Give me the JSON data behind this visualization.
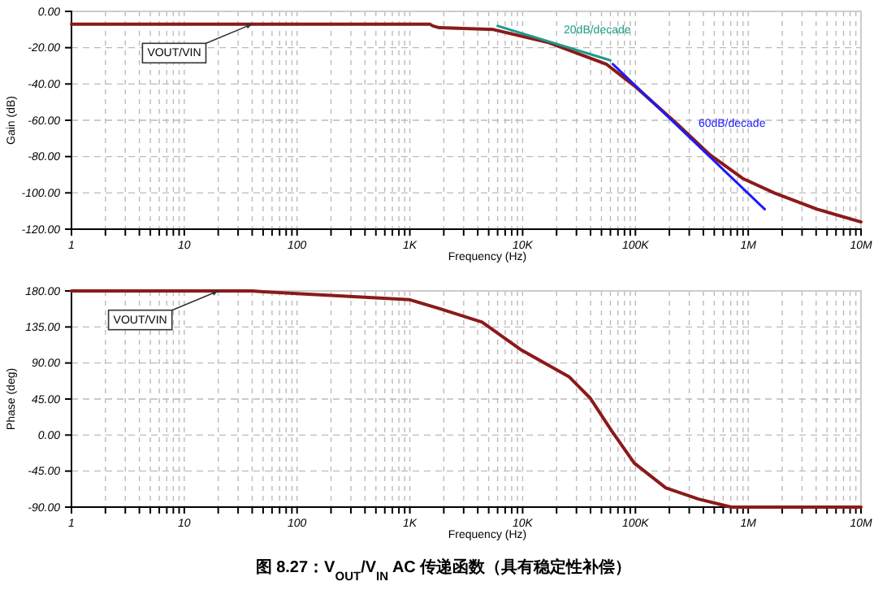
{
  "chart_data": [
    {
      "type": "line",
      "xlabel": "Frequency (Hz)",
      "ylabel": "Gain (dB)",
      "log": "x",
      "grid": true,
      "xlim": [
        1,
        10000000
      ],
      "ylim": [
        -120,
        0
      ],
      "xticks": [
        1,
        {
          "value": 2,
          "label": null
        },
        {
          "value": 3,
          "label": null
        },
        {
          "value": 4,
          "label": null
        },
        {
          "value": 5,
          "label": null
        },
        {
          "value": 6,
          "label": null
        },
        {
          "value": 7,
          "label": null
        },
        {
          "value": 8,
          "label": null
        },
        {
          "value": 9,
          "label": null
        },
        10,
        {
          "value": 20,
          "label": null
        },
        {
          "value": 30,
          "label": null
        },
        {
          "value": 40,
          "label": null
        },
        {
          "value": 50,
          "label": null
        },
        {
          "value": 60,
          "label": null
        },
        {
          "value": 70,
          "label": null
        },
        {
          "value": 80,
          "label": null
        },
        {
          "value": 90,
          "label": null
        },
        100,
        {
          "value": 200,
          "label": null
        },
        {
          "value": 300,
          "label": null
        },
        {
          "value": 400,
          "label": null
        },
        {
          "value": 500,
          "label": null
        },
        {
          "value": 600,
          "label": null
        },
        {
          "value": 700,
          "label": null
        },
        {
          "value": 800,
          "label": null
        },
        {
          "value": 900,
          "label": null
        },
        {
          "value": 1000,
          "label": "1K"
        },
        {
          "value": 2000,
          "label": null
        },
        {
          "value": 3000,
          "label": null
        },
        {
          "value": 4000,
          "label": null
        },
        {
          "value": 5000,
          "label": null
        },
        {
          "value": 6000,
          "label": null
        },
        {
          "value": 7000,
          "label": null
        },
        {
          "value": 8000,
          "label": null
        },
        {
          "value": 9000,
          "label": null
        },
        {
          "value": 10000,
          "label": "10K"
        },
        {
          "value": 20000,
          "label": null
        },
        {
          "value": 30000,
          "label": null
        },
        {
          "value": 40000,
          "label": null
        },
        {
          "value": 50000,
          "label": null
        },
        {
          "value": 60000,
          "label": null
        },
        {
          "value": 70000,
          "label": null
        },
        {
          "value": 80000,
          "label": null
        },
        {
          "value": 90000,
          "label": null
        },
        {
          "value": 100000,
          "label": "100K"
        },
        {
          "value": 200000,
          "label": null
        },
        {
          "value": 300000,
          "label": null
        },
        {
          "value": 400000,
          "label": null
        },
        {
          "value": 500000,
          "label": null
        },
        {
          "value": 600000,
          "label": null
        },
        {
          "value": 700000,
          "label": null
        },
        {
          "value": 800000,
          "label": null
        },
        {
          "value": 900000,
          "label": null
        },
        {
          "value": 1000000,
          "label": "1M"
        },
        {
          "value": 2000000,
          "label": null
        },
        {
          "value": 3000000,
          "label": null
        },
        {
          "value": 4000000,
          "label": null
        },
        {
          "value": 5000000,
          "label": null
        },
        {
          "value": 6000000,
          "label": null
        },
        {
          "value": 7000000,
          "label": null
        },
        {
          "value": 8000000,
          "label": null
        },
        {
          "value": 9000000,
          "label": null
        },
        {
          "value": 10000000,
          "label": "10M"
        }
      ],
      "yticks": [
        {
          "value": 0,
          "label": "0.00"
        },
        {
          "value": -20,
          "label": "-20.00"
        },
        {
          "value": -40,
          "label": "-40.00"
        },
        {
          "value": -60,
          "label": "-60.00"
        },
        {
          "value": -80,
          "label": "-80.00"
        },
        {
          "value": -100,
          "label": "-100.00"
        },
        {
          "value": -120,
          "label": "-120.00"
        }
      ],
      "series": [
        {
          "color": "#8b1a1a",
          "x": [
            1,
            1500,
            1600,
            1820,
            5500,
            16600,
            55000,
            98000,
            234000,
            457000,
            891000,
            1700000,
            4070000,
            10000000
          ],
          "values": [
            -7,
            -7,
            -8,
            -9,
            -10,
            -17,
            -29,
            -41,
            -62,
            -79,
            -92,
            -100,
            -109,
            -116
          ]
        },
        {
          "name": "20dB/decade",
          "color": "#1a9a8a",
          "x": [
            6000,
            60000
          ],
          "values": [
            -8,
            -27
          ]
        },
        {
          "name": "60dB/decade",
          "color": "#1a1aff",
          "x": [
            63000,
            1400000
          ],
          "values": [
            -29,
            -109
          ]
        }
      ],
      "annotations": [
        {
          "text": "VOUT/VIN",
          "x": 40,
          "y": -7
        }
      ]
    },
    {
      "type": "line",
      "xlabel": "Frequency (Hz)",
      "ylabel": "Phase (deg)",
      "log": "x",
      "grid": true,
      "xlim": [
        1,
        10000000
      ],
      "ylim": [
        -90,
        180
      ],
      "xticks": [
        1,
        {
          "value": 2,
          "label": null
        },
        {
          "value": 3,
          "label": null
        },
        {
          "value": 4,
          "label": null
        },
        {
          "value": 5,
          "label": null
        },
        {
          "value": 6,
          "label": null
        },
        {
          "value": 7,
          "label": null
        },
        {
          "value": 8,
          "label": null
        },
        {
          "value": 9,
          "label": null
        },
        10,
        {
          "value": 20,
          "label": null
        },
        {
          "value": 30,
          "label": null
        },
        {
          "value": 40,
          "label": null
        },
        {
          "value": 50,
          "label": null
        },
        {
          "value": 60,
          "label": null
        },
        {
          "value": 70,
          "label": null
        },
        {
          "value": 80,
          "label": null
        },
        {
          "value": 90,
          "label": null
        },
        100,
        {
          "value": 200,
          "label": null
        },
        {
          "value": 300,
          "label": null
        },
        {
          "value": 400,
          "label": null
        },
        {
          "value": 500,
          "label": null
        },
        {
          "value": 600,
          "label": null
        },
        {
          "value": 700,
          "label": null
        },
        {
          "value": 800,
          "label": null
        },
        {
          "value": 900,
          "label": null
        },
        {
          "value": 1000,
          "label": "1K"
        },
        {
          "value": 2000,
          "label": null
        },
        {
          "value": 3000,
          "label": null
        },
        {
          "value": 4000,
          "label": null
        },
        {
          "value": 5000,
          "label": null
        },
        {
          "value": 6000,
          "label": null
        },
        {
          "value": 7000,
          "label": null
        },
        {
          "value": 8000,
          "label": null
        },
        {
          "value": 9000,
          "label": null
        },
        {
          "value": 10000,
          "label": "10K"
        },
        {
          "value": 20000,
          "label": null
        },
        {
          "value": 30000,
          "label": null
        },
        {
          "value": 40000,
          "label": null
        },
        {
          "value": 50000,
          "label": null
        },
        {
          "value": 60000,
          "label": null
        },
        {
          "value": 70000,
          "label": null
        },
        {
          "value": 80000,
          "label": null
        },
        {
          "value": 90000,
          "label": null
        },
        {
          "value": 100000,
          "label": "100K"
        },
        {
          "value": 200000,
          "label": null
        },
        {
          "value": 300000,
          "label": null
        },
        {
          "value": 400000,
          "label": null
        },
        {
          "value": 500000,
          "label": null
        },
        {
          "value": 600000,
          "label": null
        },
        {
          "value": 700000,
          "label": null
        },
        {
          "value": 800000,
          "label": null
        },
        {
          "value": 900000,
          "label": null
        },
        {
          "value": 1000000,
          "label": "1M"
        },
        {
          "value": 2000000,
          "label": null
        },
        {
          "value": 3000000,
          "label": null
        },
        {
          "value": 4000000,
          "label": null
        },
        {
          "value": 5000000,
          "label": null
        },
        {
          "value": 6000000,
          "label": null
        },
        {
          "value": 7000000,
          "label": null
        },
        {
          "value": 8000000,
          "label": null
        },
        {
          "value": 9000000,
          "label": null
        },
        {
          "value": 10000000,
          "label": "10M"
        }
      ],
      "yticks": [
        {
          "value": 180,
          "label": "180.00"
        },
        {
          "value": 135,
          "label": "135.00"
        },
        {
          "value": 90,
          "label": "90.00"
        },
        {
          "value": 45,
          "label": "45.00"
        },
        {
          "value": 0,
          "label": "0.00"
        },
        {
          "value": -45,
          "label": "-45.00"
        },
        {
          "value": -90,
          "label": "-90.00"
        }
      ],
      "series": [
        {
          "color": "#8b1a1a",
          "x": [
            1,
            40,
            50,
            1000,
            1820,
            4370,
            9550,
            25700,
            39800,
            61700,
            97700,
            186000,
            363000,
            708000,
            10000000
          ],
          "values": [
            180,
            180,
            179,
            169,
            158,
            141,
            107,
            73,
            46,
            5,
            -35,
            -66,
            -80,
            -90,
            -90
          ]
        }
      ],
      "annotations": [
        {
          "text": "VOUT/VIN",
          "x": 20,
          "y": 180
        },
        "图 8.27：V$_{OUT}$/V$_{IN}$ AC 传递函数（具有稳定性补偿）"
      ]
    }
  ]
}
